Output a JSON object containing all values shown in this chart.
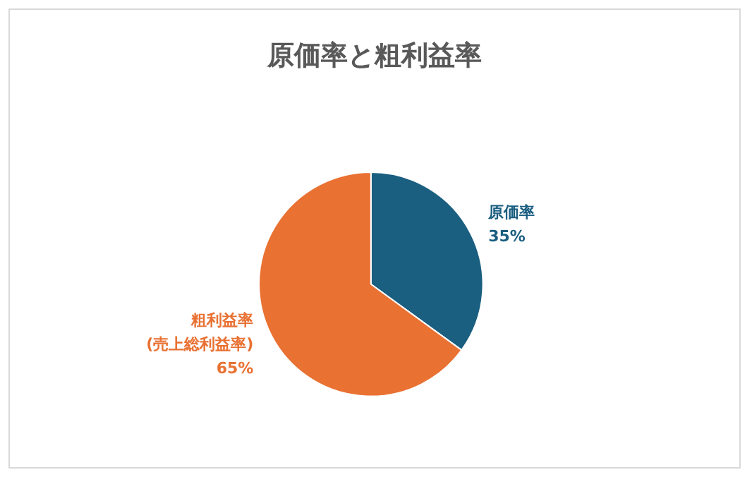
{
  "chart_data": {
    "type": "pie",
    "title": "原価率と粗利益率",
    "categories": [
      "原価率",
      "粗利益率\n(売上総利益率)"
    ],
    "values": [
      35,
      65
    ],
    "colors": [
      "#1a5e80",
      "#e97132"
    ],
    "value_labels": [
      "35%",
      "65%"
    ]
  }
}
